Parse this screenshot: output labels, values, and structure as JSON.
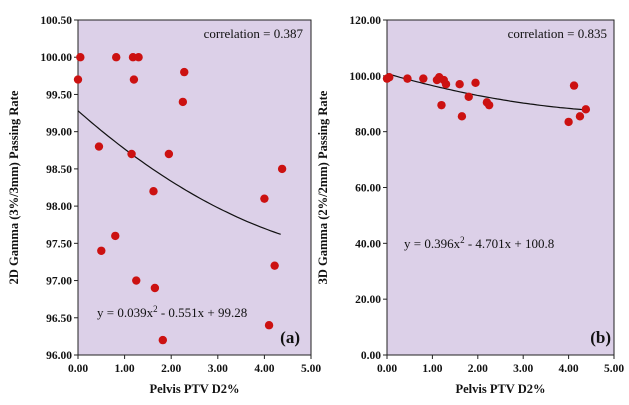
{
  "chart_data": [
    {
      "type": "scatter",
      "panel_label": "(a)",
      "xlabel": "Pelvis PTV D2%",
      "ylabel": "2D Gamma (3%/3mm) Passing Rate",
      "xlim": [
        0,
        5
      ],
      "ylim": [
        96,
        100.5
      ],
      "x_ticks": [
        "0.00",
        "1.00",
        "2.00",
        "3.00",
        "4.00",
        "5.00"
      ],
      "y_ticks": [
        "96.00",
        "96.50",
        "97.00",
        "97.50",
        "98.00",
        "98.50",
        "99.00",
        "99.50",
        "100.00",
        "100.50"
      ],
      "correlation_text": "correlation = 0.387",
      "equation_text": "y = 0.039x2 - 0.551x + 99.28",
      "fit": {
        "a": 0.039,
        "b": -0.551,
        "c": 99.28,
        "x_range": [
          0,
          4.35
        ]
      },
      "background": "#dcd0e8",
      "point_color": "#cc1111",
      "series": [
        {
          "x": [
            0.0,
            0.05,
            0.45,
            0.5,
            0.8,
            0.82,
            1.15,
            1.18,
            1.2,
            1.25,
            1.3,
            1.62,
            1.65,
            1.82,
            1.95,
            2.25,
            2.28,
            4.0,
            4.1,
            4.22,
            4.38
          ],
          "y": [
            99.7,
            100.0,
            98.8,
            97.4,
            97.6,
            100.0,
            98.7,
            100.0,
            99.7,
            97.0,
            100.0,
            98.2,
            96.9,
            96.2,
            98.7,
            99.4,
            99.8,
            98.1,
            96.4,
            97.2,
            98.5
          ]
        }
      ]
    },
    {
      "type": "scatter",
      "panel_label": "(b)",
      "xlabel": "Pelvis PTV D2%",
      "ylabel": "3D Gamma (2%/2mm) Passing Rate",
      "xlim": [
        0,
        5
      ],
      "ylim": [
        0,
        120
      ],
      "x_ticks": [
        "0.00",
        "1.00",
        "2.00",
        "3.00",
        "4.00",
        "5.00"
      ],
      "y_ticks": [
        "0.00",
        "20.00",
        "40.00",
        "60.00",
        "80.00",
        "100.00",
        "120.00"
      ],
      "correlation_text": "correlation = 0.835",
      "equation_text": "y = 0.396x2 - 4.701x + 100.8",
      "fit": {
        "a": 0.396,
        "b": -4.701,
        "c": 100.8,
        "x_range": [
          0,
          4.4
        ]
      },
      "background": "#dcd0e8",
      "point_color": "#cc1111",
      "series": [
        {
          "x": [
            0.0,
            0.05,
            0.45,
            0.8,
            1.1,
            1.15,
            1.2,
            1.25,
            1.3,
            1.6,
            1.65,
            1.8,
            1.95,
            2.2,
            2.25,
            4.0,
            4.12,
            4.25,
            4.38
          ],
          "y": [
            99.0,
            99.5,
            99.0,
            99.0,
            98.5,
            99.5,
            89.5,
            98.5,
            97.0,
            97.0,
            85.5,
            92.5,
            97.5,
            90.5,
            89.5,
            83.5,
            96.5,
            85.5,
            88.0
          ]
        }
      ]
    }
  ]
}
